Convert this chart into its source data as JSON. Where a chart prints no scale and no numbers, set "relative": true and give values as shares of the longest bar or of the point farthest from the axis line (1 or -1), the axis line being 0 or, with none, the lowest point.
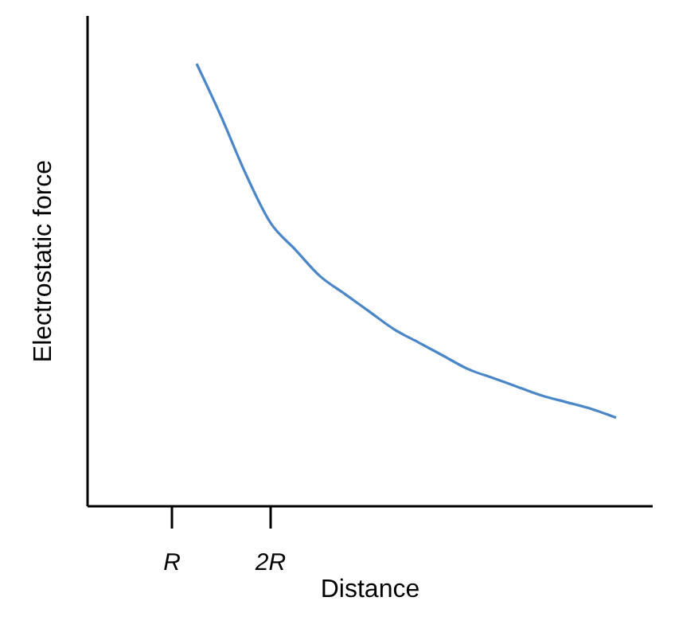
{
  "chart_data": {
    "type": "line",
    "relative": true,
    "xlabel": "Distance",
    "ylabel": "Electrostatic force",
    "categories": [
      "R",
      null,
      null,
      null,
      "2R",
      null,
      null,
      null,
      null,
      null,
      null,
      null,
      null,
      null,
      null,
      null,
      null,
      null,
      null
    ],
    "tick_labels": "x",
    "marker": "none",
    "line_style": "solid",
    "series": [
      {
        "color": "#4a86c8",
        "values": [
          null,
          1,
          0.88,
          0.75,
          0.64,
          0.58,
          0.52,
          0.48,
          0.44,
          0.4,
          0.37,
          0.34,
          0.31,
          0.29,
          0.27,
          0.25,
          0.235,
          0.22,
          0.2
        ]
      }
    ]
  }
}
